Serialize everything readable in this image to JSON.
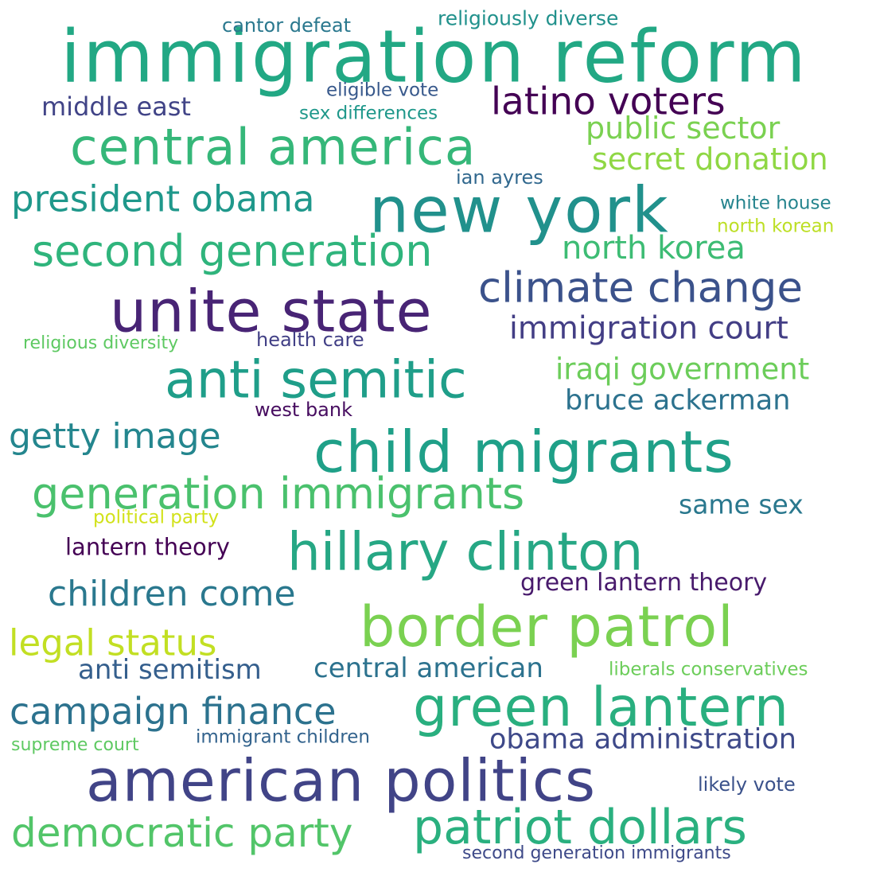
{
  "title": "Word cloud",
  "words": [
    {
      "text": "immigration reform",
      "color": "#22a884"
    },
    {
      "text": "new york",
      "color": "#21918c"
    },
    {
      "text": "central america",
      "color": "#35b779"
    },
    {
      "text": "latino voters",
      "color": "#440154"
    },
    {
      "text": "unite state",
      "color": "#482475"
    },
    {
      "text": "child migrants",
      "color": "#1fa088"
    },
    {
      "text": "anti semitic",
      "color": "#1f9e89"
    },
    {
      "text": "climate change",
      "color": "#3b528b"
    },
    {
      "text": "second generation",
      "color": "#2fb47c"
    },
    {
      "text": "president obama",
      "color": "#1f988b"
    },
    {
      "text": "hillary clinton",
      "color": "#26a784"
    },
    {
      "text": "border patrol",
      "color": "#7ad151"
    },
    {
      "text": "green lantern",
      "color": "#29af7f"
    },
    {
      "text": "american politics",
      "color": "#414487"
    },
    {
      "text": "patriot dollars",
      "color": "#2ab07f"
    },
    {
      "text": "generation immigrants",
      "color": "#4ac16d"
    },
    {
      "text": "democratic party",
      "color": "#52c569"
    },
    {
      "text": "campaign finance",
      "color": "#2c728e"
    },
    {
      "text": "children come",
      "color": "#2a788e"
    },
    {
      "text": "legal status",
      "color": "#c2df23"
    },
    {
      "text": "getty image",
      "color": "#24868e"
    },
    {
      "text": "public sector",
      "color": "#7ad151"
    },
    {
      "text": "secret donation",
      "color": "#8fd744"
    },
    {
      "text": "north korea",
      "color": "#3dbc74"
    },
    {
      "text": "immigration court",
      "color": "#433e85"
    },
    {
      "text": "iraqi government",
      "color": "#6ccd5a"
    },
    {
      "text": "bruce ackerman",
      "color": "#2c728e"
    },
    {
      "text": "middle east",
      "color": "#414487"
    },
    {
      "text": "same sex",
      "color": "#2a788e"
    },
    {
      "text": "obama administration",
      "color": "#3e4989"
    },
    {
      "text": "anti semitism",
      "color": "#355f8d"
    },
    {
      "text": "central american",
      "color": "#2c728e"
    },
    {
      "text": "lantern theory",
      "color": "#440154"
    },
    {
      "text": "green lantern theory",
      "color": "#481a6c"
    },
    {
      "text": "cantor defeat",
      "color": "#2a788e"
    },
    {
      "text": "religiously diverse",
      "color": "#21918c"
    },
    {
      "text": "eligible vote",
      "color": "#38598c"
    },
    {
      "text": "sex differences",
      "color": "#1f988b"
    },
    {
      "text": "ian ayres",
      "color": "#31688e"
    },
    {
      "text": "white house",
      "color": "#25848e"
    },
    {
      "text": "north korean",
      "color": "#bddf26"
    },
    {
      "text": "religious diversity",
      "color": "#5ec962"
    },
    {
      "text": "health care",
      "color": "#424086"
    },
    {
      "text": "west bank",
      "color": "#470d60"
    },
    {
      "text": "political party",
      "color": "#d2e21b"
    },
    {
      "text": "liberals conservatives",
      "color": "#6ccd5a"
    },
    {
      "text": "immigrant children",
      "color": "#33638d"
    },
    {
      "text": "supreme court",
      "color": "#5ec962"
    },
    {
      "text": "likely vote",
      "color": "#3b528b"
    },
    {
      "text": "second generation immigrants",
      "color": "#3e4a89"
    }
  ]
}
